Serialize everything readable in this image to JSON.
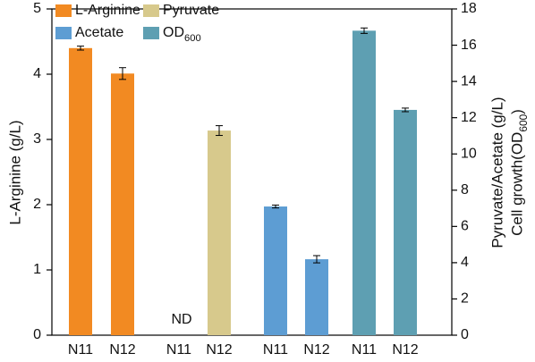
{
  "chart_data": {
    "type": "bar",
    "categories": [
      "N11",
      "N12",
      "N11",
      "N12",
      "N11",
      "N12",
      "N11",
      "N12"
    ],
    "ylabel": "L-Arginine (g/L)",
    "y2label": [
      "Pyruvate/Acetate (g/L)",
      "Cell growth(OD600)"
    ],
    "ylim": [
      0,
      5
    ],
    "yticks": [
      0,
      1,
      2,
      3,
      4,
      5
    ],
    "y2lim": [
      0,
      18
    ],
    "y2ticks": [
      0,
      2,
      4,
      6,
      8,
      10,
      12,
      14,
      16,
      18
    ],
    "series": [
      {
        "name": "L-Arginine",
        "color": "#f28a22",
        "values": [
          4.4,
          4.01,
          null,
          null,
          null,
          null,
          null,
          null
        ],
        "errors": [
          0.03,
          0.09,
          null,
          null,
          null,
          null,
          null,
          null
        ]
      },
      {
        "name": "Pyruvate",
        "color": "#d7c98c",
        "axis": "y2",
        "values": [
          null,
          null,
          null,
          11.29,
          null,
          null,
          null,
          null
        ],
        "errors": [
          null,
          null,
          null,
          0.27,
          null,
          null,
          null,
          null
        ]
      },
      {
        "name": "Acetate",
        "color": "#5d9dd3",
        "axis": "y2",
        "values": [
          null,
          null,
          null,
          null,
          7.1,
          4.19,
          null,
          null
        ],
        "errors": [
          null,
          null,
          null,
          null,
          0.08,
          0.2,
          null,
          null
        ]
      },
      {
        "name": "OD600",
        "color": "#5e9fb2",
        "axis": "y2",
        "values": [
          null,
          null,
          null,
          null,
          null,
          null,
          16.8,
          12.43
        ],
        "errors": [
          null,
          null,
          null,
          null,
          null,
          null,
          0.15,
          0.1
        ]
      }
    ],
    "annotations": [
      {
        "text": "ND",
        "category": 2
      }
    ],
    "legend": "upper left"
  }
}
